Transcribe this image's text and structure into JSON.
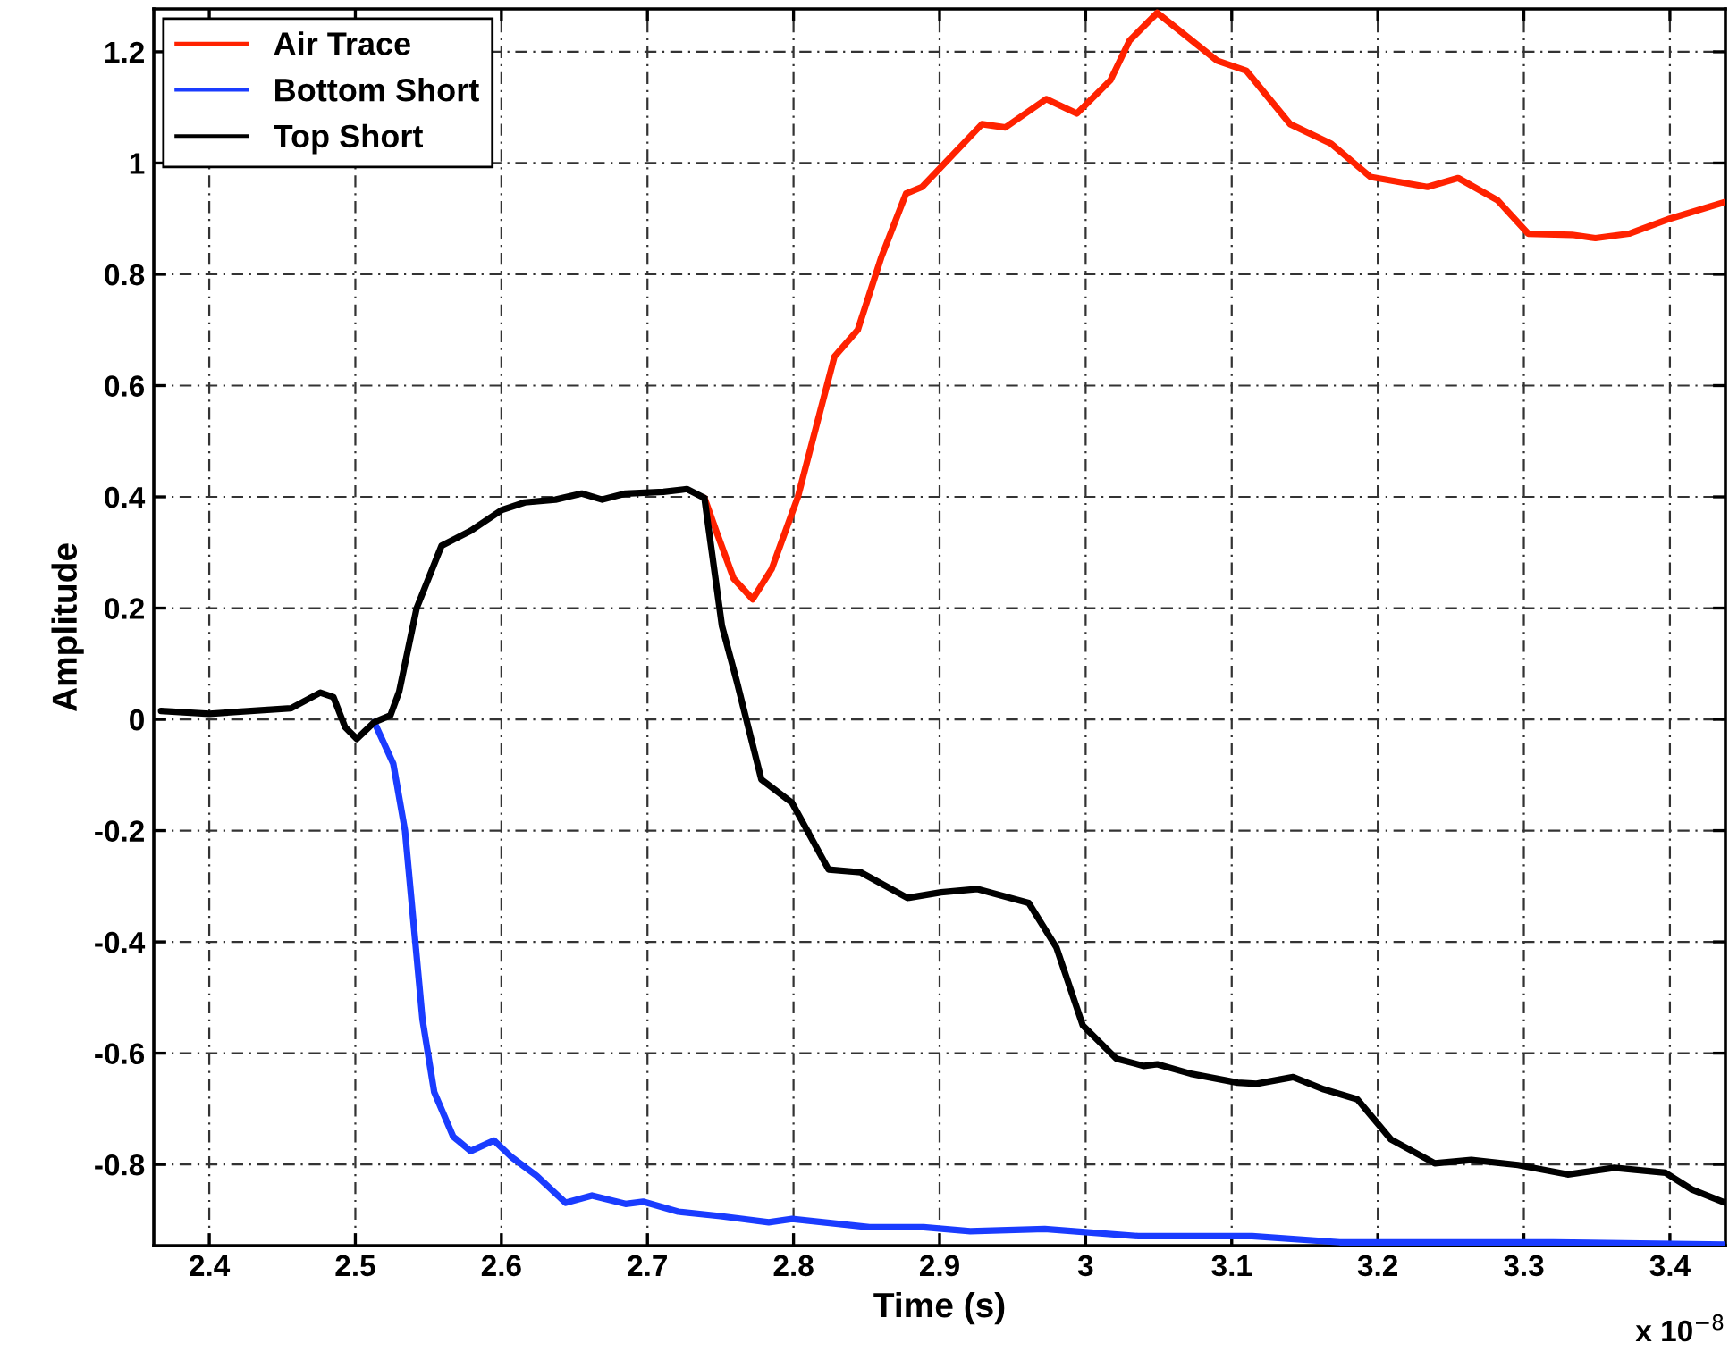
{
  "chart_data": {
    "type": "line",
    "xlabel": "Time (s)",
    "ylabel": "Amplitude",
    "annotations": [
      "x 10$^{−8}$"
    ],
    "xlim": [
      2.362,
      3.438
    ],
    "ylim": [
      -0.946,
      1.277
    ],
    "xticks": [
      2.4,
      2.5,
      2.6,
      2.7,
      2.8,
      2.9,
      3,
      3.1,
      3.2,
      3.3,
      3.4
    ],
    "yticks": [
      -0.8,
      -0.6,
      -0.4,
      -0.2,
      0,
      0.2,
      0.4,
      0.6,
      0.8,
      1,
      1.2
    ],
    "grid": true,
    "legend": "top left",
    "line_style": "solid",
    "marker": "none",
    "series": [
      {
        "name": "Air Trace",
        "color": "#ff2200",
        "x": [
          2.739,
          2.747,
          2.759,
          2.772,
          2.785,
          2.803,
          2.828,
          2.844,
          2.86,
          2.877,
          2.888,
          2.929,
          2.945,
          2.973,
          2.994,
          3.017,
          3.03,
          3.049,
          3.09,
          3.11,
          3.14,
          3.168,
          3.195,
          3.234,
          3.255,
          3.282,
          3.303,
          3.333,
          3.349,
          3.372,
          3.4,
          3.438
        ],
        "values": [
          0.398,
          0.339,
          0.253,
          0.216,
          0.27,
          0.4,
          0.652,
          0.7,
          0.83,
          0.945,
          0.957,
          1.07,
          1.064,
          1.115,
          1.089,
          1.149,
          1.22,
          1.27,
          1.184,
          1.166,
          1.07,
          1.035,
          0.975,
          0.957,
          0.973,
          0.933,
          0.873,
          0.871,
          0.865,
          0.873,
          0.9,
          0.93
        ]
      },
      {
        "name": "Bottom Short",
        "color": "#1a3cff",
        "x": [
          2.513,
          2.526,
          2.534,
          2.54,
          2.546,
          2.554,
          2.567,
          2.579,
          2.595,
          2.607,
          2.624,
          2.644,
          2.662,
          2.685,
          2.697,
          2.721,
          2.75,
          2.783,
          2.799,
          2.852,
          2.889,
          2.921,
          2.972,
          3.036,
          3.114,
          3.174,
          3.32,
          3.438
        ],
        "values": [
          -0.005,
          -0.08,
          -0.2,
          -0.37,
          -0.54,
          -0.67,
          -0.75,
          -0.776,
          -0.757,
          -0.787,
          -0.82,
          -0.869,
          -0.856,
          -0.871,
          -0.867,
          -0.885,
          -0.893,
          -0.904,
          -0.898,
          -0.913,
          -0.913,
          -0.92,
          -0.916,
          -0.929,
          -0.929,
          -0.94,
          -0.94,
          -0.944
        ]
      },
      {
        "name": "Top Short",
        "color": "#000000",
        "x": [
          2.367,
          2.4,
          2.456,
          2.476,
          2.485,
          2.493,
          2.501,
          2.513,
          2.524,
          2.53,
          2.542,
          2.559,
          2.579,
          2.6,
          2.616,
          2.637,
          2.655,
          2.669,
          2.685,
          2.711,
          2.727,
          2.739,
          2.751,
          2.761,
          2.778,
          2.799,
          2.824,
          2.846,
          2.878,
          2.901,
          2.926,
          2.961,
          2.98,
          2.998,
          3.021,
          3.04,
          3.049,
          3.072,
          3.104,
          3.117,
          3.142,
          3.163,
          3.186,
          3.209,
          3.239,
          3.264,
          3.296,
          3.33,
          3.362,
          3.397,
          3.415,
          3.438
        ],
        "values": [
          0.015,
          0.01,
          0.02,
          0.048,
          0.04,
          -0.014,
          -0.035,
          -0.005,
          0.007,
          0.05,
          0.2,
          0.312,
          0.339,
          0.376,
          0.39,
          0.395,
          0.406,
          0.395,
          0.406,
          0.409,
          0.414,
          0.398,
          0.168,
          0.07,
          -0.108,
          -0.15,
          -0.27,
          -0.275,
          -0.321,
          -0.311,
          -0.305,
          -0.33,
          -0.41,
          -0.55,
          -0.61,
          -0.623,
          -0.62,
          -0.637,
          -0.653,
          -0.655,
          -0.643,
          -0.665,
          -0.683,
          -0.755,
          -0.798,
          -0.792,
          -0.801,
          -0.818,
          -0.806,
          -0.815,
          -0.845,
          -0.869
        ]
      }
    ]
  }
}
